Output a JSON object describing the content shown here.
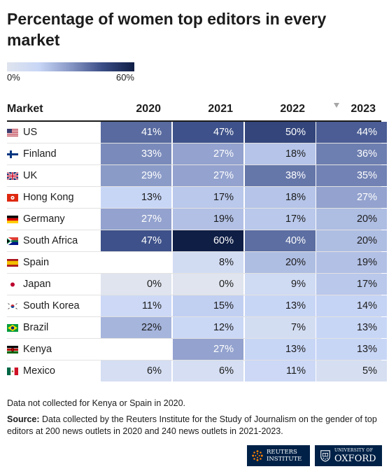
{
  "title": "Percentage of women top editors in every market",
  "legend": {
    "min_label": "0%",
    "max_label": "60%"
  },
  "header": {
    "market": "Market",
    "years": [
      "2020",
      "2021",
      "2022",
      "2023"
    ]
  },
  "colors": {
    "scale_low": "#dfe4ee",
    "scale_high": "#0f1e45",
    "text_dark": "#1c1c1c",
    "text_light": "#ffffff",
    "brand": "#002147"
  },
  "chart_data": {
    "type": "heatmap",
    "title": "Percentage of women top editors in every market",
    "x": [
      "2020",
      "2021",
      "2022",
      "2023"
    ],
    "y": [
      "US",
      "Finland",
      "UK",
      "Hong Kong",
      "Germany",
      "South Africa",
      "Spain",
      "Japan",
      "South Korea",
      "Brazil",
      "Kenya",
      "Mexico"
    ],
    "unit": "%",
    "scale": [
      0,
      60
    ],
    "rows": [
      {
        "market": "US",
        "flag": "us-flag",
        "values": [
          41,
          47,
          50,
          44
        ]
      },
      {
        "market": "Finland",
        "flag": "finland-flag",
        "values": [
          33,
          27,
          18,
          36
        ]
      },
      {
        "market": "UK",
        "flag": "uk-flag",
        "values": [
          29,
          27,
          38,
          35
        ]
      },
      {
        "market": "Hong Kong",
        "flag": "hong-kong-flag",
        "values": [
          13,
          17,
          18,
          27
        ]
      },
      {
        "market": "Germany",
        "flag": "germany-flag",
        "values": [
          27,
          19,
          17,
          20
        ]
      },
      {
        "market": "South Africa",
        "flag": "south-africa-flag",
        "values": [
          47,
          60,
          40,
          20
        ]
      },
      {
        "market": "Spain",
        "flag": "spain-flag",
        "values": [
          null,
          8,
          20,
          19
        ]
      },
      {
        "market": "Japan",
        "flag": "japan-flag",
        "values": [
          0,
          0,
          9,
          17
        ]
      },
      {
        "market": "South Korea",
        "flag": "south-korea-flag",
        "values": [
          11,
          15,
          13,
          14
        ]
      },
      {
        "market": "Brazil",
        "flag": "brazil-flag",
        "values": [
          22,
          12,
          7,
          13
        ]
      },
      {
        "market": "Kenya",
        "flag": "kenya-flag",
        "values": [
          null,
          27,
          13,
          13
        ]
      },
      {
        "market": "Mexico",
        "flag": "mexico-flag",
        "values": [
          6,
          6,
          11,
          5
        ]
      }
    ]
  },
  "footer": {
    "note": "Data not collected for Kenya or Spain in 2020.",
    "source_label": "Source:",
    "source_text": " Data collected by the Reuters Institute for the Study of Journalism on the gender of top editors at 200 news outlets in 2020 and 240 news outlets in 2021-2023."
  },
  "logos": {
    "reuters": {
      "line1": "REUTERS",
      "line2": "INSTITUTE",
      "icon": "reuters-dots-icon"
    },
    "oxford": {
      "line1": "UNIVERSITY OF",
      "line2": "OXFORD",
      "icon": "oxford-crest-icon"
    }
  }
}
